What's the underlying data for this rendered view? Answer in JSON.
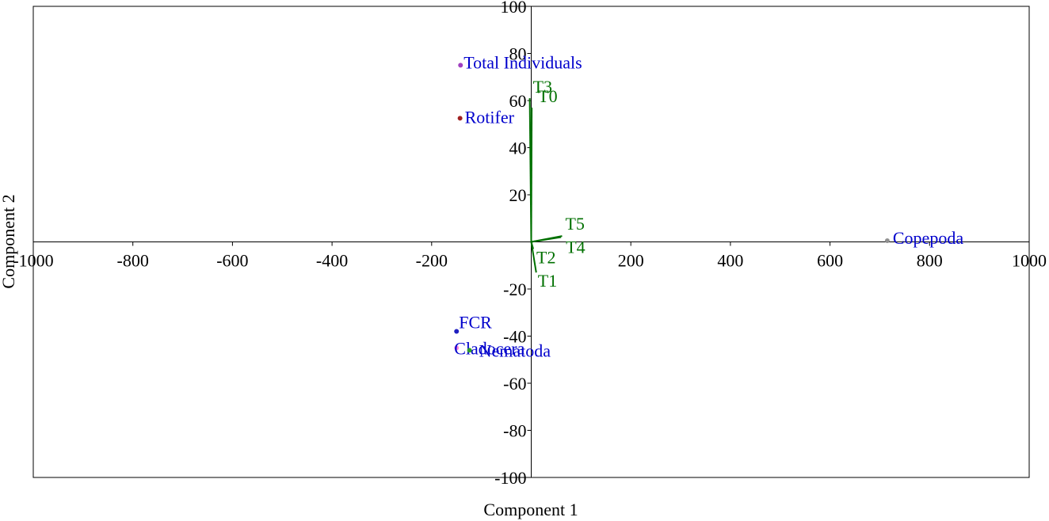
{
  "chart_data": {
    "type": "scatter",
    "subtype": "biplot",
    "title": "",
    "xlabel": "Component 1",
    "ylabel": "Component 2",
    "xlim": [
      -1000,
      1000
    ],
    "ylim": [
      -100,
      100
    ],
    "x_ticks": [
      -1000,
      -800,
      -600,
      -400,
      -200,
      200,
      400,
      600,
      800,
      1000
    ],
    "y_ticks": [
      -100,
      -80,
      -60,
      -40,
      -20,
      20,
      40,
      60,
      80,
      100
    ],
    "grid": false,
    "axis_color": "#000000",
    "point_label_color": "#0000cc",
    "vector_color": "#007000",
    "points": [
      {
        "label": "Total Individuals",
        "x": -142,
        "y": 75,
        "color": "#a040c0"
      },
      {
        "label": "Rotifer",
        "x": -143,
        "y": 52.5,
        "color": "#a02020"
      },
      {
        "label": "Copepoda",
        "x": 715,
        "y": 0.5,
        "color": "#909090"
      },
      {
        "label": "FCR",
        "x": -150,
        "y": -38,
        "color": "#2020c0"
      },
      {
        "label": "Cladocera",
        "x": -150,
        "y": -45,
        "color": "#ff88dd"
      },
      {
        "label": "Nematoda",
        "x": -124,
        "y": -46,
        "color": "#30a030"
      }
    ],
    "vectors": [
      {
        "label": "T3",
        "x": -3,
        "y": 61
      },
      {
        "label": "T0",
        "x": 1,
        "y": 57
      },
      {
        "label": "T5",
        "x": 62,
        "y": 2.5
      },
      {
        "label": "T4",
        "x": 60,
        "y": 2
      },
      {
        "label": "T2",
        "x": 4,
        "y": -3
      },
      {
        "label": "T1",
        "x": 10,
        "y": -13
      }
    ]
  }
}
